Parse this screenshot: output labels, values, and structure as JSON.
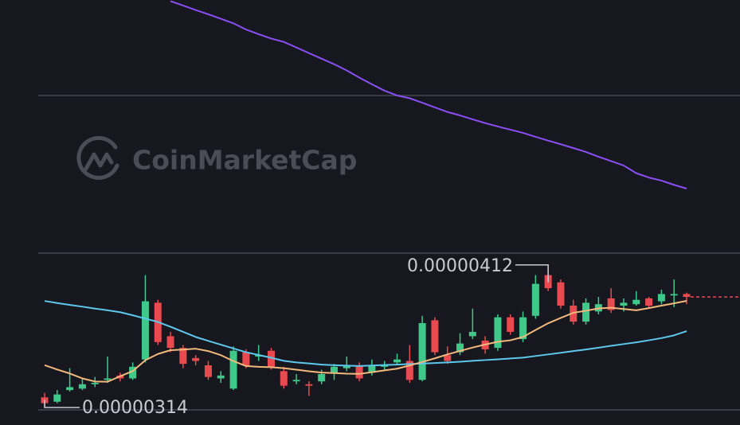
{
  "chart_data": {
    "type": "candlestick",
    "watermark": "CoinMarketCap",
    "ylim": [
      3.02e-06,
      5.94e-06
    ],
    "grid_lines": [
      5.284e-06,
      4.201e-06,
      3.124e-06
    ],
    "up_color": "#3fc88a",
    "down_color": "#e84a4f",
    "high_label": 4.12e-06,
    "low_label": 3.14e-06,
    "open": [
      3.21e-06,
      3.18e-06,
      3.26e-06,
      3.27e-06,
      3.3e-06,
      3.33e-06,
      3.36e-06,
      3.34e-06,
      3.47e-06,
      3.86e-06,
      3.63e-06,
      3.55e-06,
      3.48e-06,
      3.43e-06,
      3.34e-06,
      3.27e-06,
      3.52e-06,
      3.49e-06,
      3.53e-06,
      3.39e-06,
      3.32e-06,
      3.3e-06,
      3.32e-06,
      3.38e-06,
      3.41e-06,
      3.43e-06,
      3.38e-06,
      3.42e-06,
      3.45e-06,
      3.46e-06,
      3.33e-06,
      3.74e-06,
      3.5e-06,
      3.52e-06,
      3.63e-06,
      3.6e-06,
      3.55e-06,
      3.76e-06,
      3.61e-06,
      3.77e-06,
      4.05e-06,
      4e-06,
      3.84e-06,
      3.73e-06,
      3.8e-06,
      3.89e-06,
      3.84e-06,
      3.85e-06,
      3.89e-06,
      3.87e-06,
      3.91e-06,
      3.92e-06
    ],
    "high": [
      3.24e-06,
      3.26e-06,
      3.41e-06,
      3.34e-06,
      3.35e-06,
      3.49e-06,
      3.38e-06,
      3.45e-06,
      4.05e-06,
      3.88e-06,
      3.66e-06,
      3.57e-06,
      3.5e-06,
      3.46e-06,
      3.39e-06,
      3.56e-06,
      3.54e-06,
      3.57e-06,
      3.55e-06,
      3.42e-06,
      3.37e-06,
      3.32e-06,
      3.4e-06,
      3.44e-06,
      3.49e-06,
      3.45e-06,
      3.47e-06,
      3.46e-06,
      3.51e-06,
      3.57e-06,
      3.77e-06,
      3.76e-06,
      3.56e-06,
      3.65e-06,
      3.82e-06,
      3.63e-06,
      3.78e-06,
      3.78e-06,
      3.8e-06,
      4.05e-06,
      4.12e-06,
      4.02e-06,
      3.88e-06,
      3.89e-06,
      3.9e-06,
      3.96e-06,
      3.89e-06,
      3.94e-06,
      3.9e-06,
      3.95e-06,
      4.02e-06,
      3.93e-06
    ],
    "low": [
      3.14e-06,
      3.17e-06,
      3.25e-06,
      3.26e-06,
      3.28e-06,
      3.31e-06,
      3.32e-06,
      3.33e-06,
      3.45e-06,
      3.57e-06,
      3.52e-06,
      3.41e-06,
      3.43e-06,
      3.33e-06,
      3.31e-06,
      3.26e-06,
      3.41e-06,
      3.46e-06,
      3.4e-06,
      3.27e-06,
      3.3e-06,
      3.22e-06,
      3.3e-06,
      3.33e-06,
      3.39e-06,
      3.32e-06,
      3.36e-06,
      3.4e-06,
      3.43e-06,
      3.31e-06,
      3.32e-06,
      3.5e-06,
      3.44e-06,
      3.5e-06,
      3.61e-06,
      3.51e-06,
      3.53e-06,
      3.64e-06,
      3.59e-06,
      3.75e-06,
      3.94e-06,
      3.82e-06,
      3.71e-06,
      3.71e-06,
      3.78e-06,
      3.79e-06,
      3.8e-06,
      3.84e-06,
      3.82e-06,
      3.85e-06,
      3.83e-06,
      3.85e-06
    ],
    "close": [
      3.17e-06,
      3.23e-06,
      3.28e-06,
      3.3e-06,
      3.31e-06,
      3.34e-06,
      3.34e-06,
      3.42e-06,
      3.87e-06,
      3.59e-06,
      3.55e-06,
      3.44e-06,
      3.46e-06,
      3.35e-06,
      3.36e-06,
      3.53e-06,
      3.43e-06,
      3.5e-06,
      3.42e-06,
      3.29e-06,
      3.33e-06,
      3.29e-06,
      3.37e-06,
      3.42e-06,
      3.43e-06,
      3.34e-06,
      3.43e-06,
      3.43e-06,
      3.47e-06,
      3.33e-06,
      3.72e-06,
      3.52e-06,
      3.46e-06,
      3.58e-06,
      3.66e-06,
      3.54e-06,
      3.76e-06,
      3.66e-06,
      3.76e-06,
      3.99e-06,
      3.96e-06,
      3.84e-06,
      3.73e-06,
      3.86e-06,
      3.85e-06,
      3.81e-06,
      3.86e-06,
      3.88e-06,
      3.84e-06,
      3.92e-06,
      3.92e-06,
      3.9e-06
    ],
    "series": [
      {
        "color": "#8a4ff5",
        "values": [
          null,
          null,
          null,
          null,
          null,
          null,
          null,
          null,
          null,
          null,
          5.932e-06,
          5.902e-06,
          5.871e-06,
          5.842e-06,
          5.811e-06,
          5.78e-06,
          5.737e-06,
          5.705e-06,
          5.675e-06,
          5.652e-06,
          5.614e-06,
          5.575e-06,
          5.537e-06,
          5.499e-06,
          5.456e-06,
          5.407e-06,
          5.361e-06,
          5.317e-06,
          5.284e-06,
          5.265e-06,
          5.234e-06,
          5.202e-06,
          5.171e-06,
          5.147e-06,
          5.12e-06,
          5.094e-06,
          5.071e-06,
          5.049e-06,
          5.027e-06,
          5e-06,
          4.974e-06,
          4.949e-06,
          4.923e-06,
          4.896e-06,
          4.863e-06,
          4.833e-06,
          4.803e-06,
          4.75e-06,
          4.72e-06,
          4.699e-06,
          4.67e-06,
          4.644e-06
        ]
      },
      {
        "color": "#5ec8ec",
        "values": [
          3.872e-06,
          3.858e-06,
          3.845e-06,
          3.833e-06,
          3.82e-06,
          3.808e-06,
          3.795e-06,
          3.774e-06,
          3.751e-06,
          3.728e-06,
          3.695e-06,
          3.66e-06,
          3.625e-06,
          3.598e-06,
          3.572e-06,
          3.546e-06,
          3.52e-06,
          3.501e-06,
          3.482e-06,
          3.461e-06,
          3.45e-06,
          3.443e-06,
          3.435e-06,
          3.431e-06,
          3.428e-06,
          3.425e-06,
          3.429e-06,
          3.432e-06,
          3.435e-06,
          3.439e-06,
          3.442e-06,
          3.446e-06,
          3.45e-06,
          3.455e-06,
          3.461e-06,
          3.466e-06,
          3.471e-06,
          3.477e-06,
          3.483e-06,
          3.494e-06,
          3.505e-06,
          3.516e-06,
          3.528e-06,
          3.539e-06,
          3.551e-06,
          3.564e-06,
          3.576e-06,
          3.588e-06,
          3.602e-06,
          3.617e-06,
          3.636e-06,
          3.665e-06
        ]
      },
      {
        "color": "#f2b97c",
        "values": [
          3.431e-06,
          3.401e-06,
          3.374e-06,
          3.34e-06,
          3.319e-06,
          3.317e-06,
          3.355e-06,
          3.39e-06,
          3.465e-06,
          3.508e-06,
          3.534e-06,
          3.538e-06,
          3.544e-06,
          3.528e-06,
          3.5e-06,
          3.459e-06,
          3.425e-06,
          3.42e-06,
          3.417e-06,
          3.41e-06,
          3.4e-06,
          3.389e-06,
          3.38e-06,
          3.377e-06,
          3.373e-06,
          3.371e-06,
          3.383e-06,
          3.395e-06,
          3.407e-06,
          3.429e-06,
          3.453e-06,
          3.478e-06,
          3.505e-06,
          3.529e-06,
          3.552e-06,
          3.573e-06,
          3.592e-06,
          3.602e-06,
          3.625e-06,
          3.673e-06,
          3.719e-06,
          3.756e-06,
          3.791e-06,
          3.805e-06,
          3.821e-06,
          3.826e-06,
          3.817e-06,
          3.808e-06,
          3.823e-06,
          3.84e-06,
          3.856e-06,
          3.873e-06
        ]
      }
    ]
  }
}
